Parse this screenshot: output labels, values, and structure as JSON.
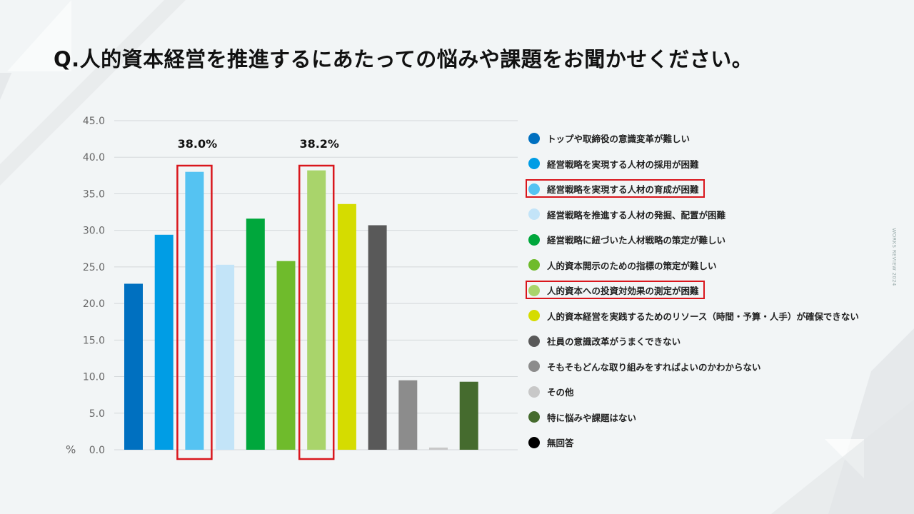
{
  "title": "Q.人的資本経営を推進するにあたっての悩みや課題をお聞かせください。",
  "watermark": "WORKS REVIEW 2024",
  "colors": {
    "highlight": "#d9161c",
    "gridline": "#d4d8da",
    "axis_text": "#666666"
  },
  "chart_data": {
    "type": "bar",
    "ylabel": "%",
    "ylim": [
      0,
      45
    ],
    "yticks": [
      "45.0",
      "40.0",
      "35.0",
      "30.0",
      "25.0",
      "20.0",
      "15.0",
      "10.0",
      "5.0",
      "0.0"
    ],
    "grid": true,
    "legend_position": "right",
    "categories": [
      "トップや取締役の意識変革が難しい",
      "経営戦略を実現する人材の採用が困難",
      "経営戦略を実現する人材の育成が困難",
      "経営戦略を推進する人材の発掘、配置が困難",
      "経営戦略に紐づいた人材戦略の策定が難しい",
      "人的資本開示のための指標の策定が難しい",
      "人的資本への投資対効果の測定が困難",
      "人的資本経営を実践するためのリソース（時間・予算・人手）が確保できない",
      "社員の意識改革がうまくできない",
      "そもそもどんな取り組みをすればよいのかわからない",
      "その他",
      "特に悩みや課題はない",
      "無回答"
    ],
    "values": [
      22.7,
      29.4,
      38.0,
      25.3,
      31.6,
      25.8,
      38.2,
      33.6,
      30.7,
      9.5,
      0.3,
      9.3,
      0.0
    ],
    "colors": [
      "#0070c0",
      "#009de5",
      "#55c3f2",
      "#c3e4f8",
      "#00a73c",
      "#6fbb2c",
      "#a9d46b",
      "#d5dc00",
      "#595959",
      "#8c8c8c",
      "#c8c8c8",
      "#456b2e",
      "#000000"
    ],
    "highlighted_indices": [
      2,
      6
    ],
    "annotations": [
      {
        "index": 2,
        "text": "38.0%"
      },
      {
        "index": 6,
        "text": "38.2%"
      }
    ]
  }
}
